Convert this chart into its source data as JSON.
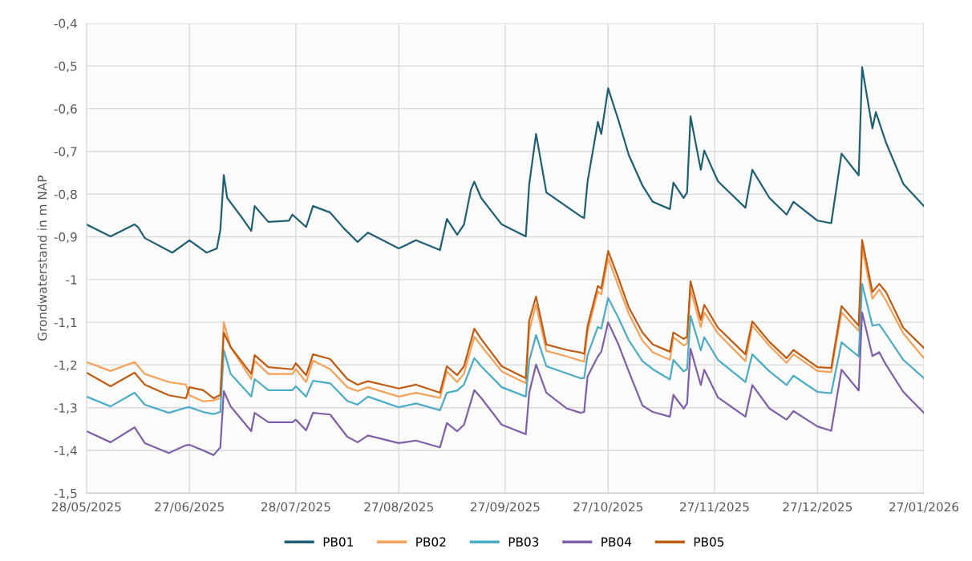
{
  "chart_data": {
    "type": "line",
    "ylabel": "Grondwaterstand in m NAP",
    "x": [
      "2025-05-28",
      "2025-06-04",
      "2025-06-11",
      "2025-06-14",
      "2025-06-21",
      "2025-06-26",
      "2025-06-27",
      "2025-07-01",
      "2025-07-04",
      "2025-07-06",
      "2025-07-07",
      "2025-07-09",
      "2025-07-15",
      "2025-07-16",
      "2025-07-20",
      "2025-07-27",
      "2025-07-28",
      "2025-07-31",
      "2025-08-02",
      "2025-08-07",
      "2025-08-12",
      "2025-08-15",
      "2025-08-18",
      "2025-08-27",
      "2025-09-01",
      "2025-09-08",
      "2025-09-10",
      "2025-09-13",
      "2025-09-15",
      "2025-09-18",
      "2025-09-20",
      "2025-09-26",
      "2025-10-03",
      "2025-10-04",
      "2025-10-06",
      "2025-10-09",
      "2025-10-15",
      "2025-10-19",
      "2025-10-20",
      "2025-10-21",
      "2025-10-24",
      "2025-10-25",
      "2025-10-27",
      "2025-10-30",
      "2025-11-02",
      "2025-11-06",
      "2025-11-09",
      "2025-11-14",
      "2025-11-15",
      "2025-11-18",
      "2025-11-19",
      "2025-11-20",
      "2025-11-23",
      "2025-11-24",
      "2025-11-28",
      "2025-12-06",
      "2025-12-08",
      "2025-12-13",
      "2025-12-18",
      "2025-12-20",
      "2025-12-27",
      "2025-12-31",
      "2026-01-03",
      "2026-01-08",
      "2026-01-09",
      "2026-01-12",
      "2026-01-14",
      "2026-01-16",
      "2026-01-21",
      "2026-01-27"
    ],
    "series": [
      {
        "name": "PB01",
        "color": "#1f5f74",
        "x": [
          "2025-05-28",
          "2025-06-04",
          "2025-06-11",
          "2025-06-12",
          "2025-06-14",
          "2025-06-22",
          "2025-06-27",
          "2025-07-02",
          "2025-07-05",
          "2025-07-06",
          "2025-07-07",
          "2025-07-08",
          "2025-07-12",
          "2025-07-15",
          "2025-07-16",
          "2025-07-20",
          "2025-07-26",
          "2025-07-27",
          "2025-07-31",
          "2025-08-02",
          "2025-08-07",
          "2025-08-11",
          "2025-08-15",
          "2025-08-18",
          "2025-08-27",
          "2025-09-01",
          "2025-09-08",
          "2025-09-10",
          "2025-09-13",
          "2025-09-15",
          "2025-09-17",
          "2025-09-18",
          "2025-09-20",
          "2025-09-26",
          "2025-10-03",
          "2025-10-04",
          "2025-10-06",
          "2025-10-09",
          "2025-10-19",
          "2025-10-20",
          "2025-10-21",
          "2025-10-24",
          "2025-10-25",
          "2025-10-27",
          "2025-10-30",
          "2025-11-02",
          "2025-11-06",
          "2025-11-09",
          "2025-11-14",
          "2025-11-15",
          "2025-11-18",
          "2025-11-19",
          "2025-11-20",
          "2025-11-23",
          "2025-11-24",
          "2025-11-28",
          "2025-12-06",
          "2025-12-08",
          "2025-12-13",
          "2025-12-18",
          "2025-12-20",
          "2025-12-27",
          "2025-12-31",
          "2026-01-03",
          "2026-01-08",
          "2026-01-09",
          "2026-01-12",
          "2026-01-13",
          "2026-01-16",
          "2026-01-21",
          "2026-01-27"
        ],
        "values": [
          -0.871,
          -0.899,
          -0.871,
          -0.877,
          -0.903,
          -0.937,
          -0.908,
          -0.937,
          -0.927,
          -0.884,
          -0.755,
          -0.809,
          -0.852,
          -0.886,
          -0.828,
          -0.865,
          -0.862,
          -0.848,
          -0.877,
          -0.828,
          -0.843,
          -0.88,
          -0.912,
          -0.89,
          -0.927,
          -0.908,
          -0.931,
          -0.858,
          -0.895,
          -0.871,
          -0.79,
          -0.771,
          -0.809,
          -0.871,
          -0.899,
          -0.777,
          -0.659,
          -0.796,
          -0.852,
          -0.856,
          -0.771,
          -0.631,
          -0.659,
          -0.552,
          -0.627,
          -0.708,
          -0.78,
          -0.818,
          -0.835,
          -0.773,
          -0.809,
          -0.796,
          -0.618,
          -0.743,
          -0.698,
          -0.77,
          -0.832,
          -0.743,
          -0.809,
          -0.848,
          -0.818,
          -0.862,
          -0.868,
          -0.705,
          -0.756,
          -0.503,
          -0.646,
          -0.608,
          -0.68,
          -0.776,
          -0.828
        ]
      },
      {
        "name": "PB02",
        "color": "#f4a15a",
        "values": [
          -1.193,
          -1.214,
          -1.193,
          -1.221,
          -1.24,
          -1.246,
          -1.271,
          -1.285,
          -1.283,
          -1.278,
          -1.1,
          -1.158,
          -1.233,
          -1.19,
          -1.221,
          -1.221,
          -1.21,
          -1.24,
          -1.19,
          -1.21,
          -1.252,
          -1.261,
          -1.252,
          -1.274,
          -1.265,
          -1.277,
          -1.215,
          -1.24,
          -1.22,
          -1.134,
          -1.155,
          -1.215,
          -1.243,
          -1.12,
          -1.059,
          -1.167,
          -1.18,
          -1.19,
          -1.192,
          -1.122,
          -1.028,
          -1.035,
          -0.95,
          -1.015,
          -1.08,
          -1.143,
          -1.17,
          -1.188,
          -1.135,
          -1.154,
          -1.15,
          -1.023,
          -1.111,
          -1.077,
          -1.126,
          -1.191,
          -1.108,
          -1.155,
          -1.195,
          -1.175,
          -1.214,
          -1.217,
          -1.077,
          -1.12,
          -0.925,
          -1.045,
          -1.023,
          -1.05,
          -1.126,
          -1.184
        ]
      },
      {
        "name": "PB03",
        "color": "#4bacc6",
        "values": [
          -1.274,
          -1.297,
          -1.265,
          -1.293,
          -1.312,
          -1.3,
          -1.299,
          -1.31,
          -1.315,
          -1.31,
          -1.165,
          -1.221,
          -1.274,
          -1.233,
          -1.259,
          -1.259,
          -1.25,
          -1.274,
          -1.237,
          -1.243,
          -1.284,
          -1.293,
          -1.274,
          -1.299,
          -1.29,
          -1.306,
          -1.265,
          -1.26,
          -1.246,
          -1.184,
          -1.203,
          -1.252,
          -1.274,
          -1.19,
          -1.13,
          -1.203,
          -1.22,
          -1.231,
          -1.231,
          -1.177,
          -1.111,
          -1.115,
          -1.043,
          -1.09,
          -1.142,
          -1.191,
          -1.21,
          -1.234,
          -1.188,
          -1.215,
          -1.21,
          -1.085,
          -1.166,
          -1.135,
          -1.188,
          -1.24,
          -1.175,
          -1.215,
          -1.247,
          -1.225,
          -1.263,
          -1.266,
          -1.147,
          -1.18,
          -1.01,
          -1.108,
          -1.105,
          -1.128,
          -1.188,
          -1.231
        ]
      },
      {
        "name": "PB04",
        "color": "#7f5fa8",
        "values": [
          -1.355,
          -1.381,
          -1.346,
          -1.383,
          -1.406,
          -1.388,
          -1.387,
          -1.4,
          -1.411,
          -1.393,
          -1.261,
          -1.297,
          -1.355,
          -1.312,
          -1.334,
          -1.334,
          -1.328,
          -1.353,
          -1.312,
          -1.316,
          -1.368,
          -1.381,
          -1.365,
          -1.383,
          -1.377,
          -1.393,
          -1.336,
          -1.355,
          -1.34,
          -1.259,
          -1.277,
          -1.34,
          -1.362,
          -1.265,
          -1.199,
          -1.265,
          -1.302,
          -1.312,
          -1.31,
          -1.227,
          -1.18,
          -1.169,
          -1.1,
          -1.152,
          -1.215,
          -1.295,
          -1.31,
          -1.321,
          -1.27,
          -1.302,
          -1.29,
          -1.162,
          -1.247,
          -1.211,
          -1.276,
          -1.321,
          -1.247,
          -1.302,
          -1.328,
          -1.308,
          -1.344,
          -1.354,
          -1.211,
          -1.26,
          -1.077,
          -1.179,
          -1.17,
          -1.2,
          -1.263,
          -1.312
        ]
      },
      {
        "name": "PB05",
        "color": "#c05b12",
        "values": [
          -1.218,
          -1.25,
          -1.218,
          -1.246,
          -1.271,
          -1.278,
          -1.252,
          -1.259,
          -1.278,
          -1.27,
          -1.124,
          -1.158,
          -1.221,
          -1.177,
          -1.205,
          -1.21,
          -1.196,
          -1.224,
          -1.175,
          -1.186,
          -1.233,
          -1.246,
          -1.238,
          -1.255,
          -1.246,
          -1.265,
          -1.203,
          -1.224,
          -1.203,
          -1.115,
          -1.139,
          -1.203,
          -1.231,
          -1.096,
          -1.04,
          -1.152,
          -1.165,
          -1.171,
          -1.174,
          -1.109,
          -1.015,
          -1.021,
          -0.933,
          -0.997,
          -1.065,
          -1.124,
          -1.152,
          -1.169,
          -1.124,
          -1.139,
          -1.134,
          -1.004,
          -1.094,
          -1.059,
          -1.113,
          -1.175,
          -1.098,
          -1.146,
          -1.184,
          -1.165,
          -1.205,
          -1.207,
          -1.062,
          -1.108,
          -0.907,
          -1.029,
          -1.01,
          -1.03,
          -1.113,
          -1.16
        ]
      }
    ],
    "xlim": [
      "2025-05-28",
      "2026-01-27"
    ],
    "xticks": [
      {
        "value": "2025-05-28",
        "label": "28/05/2025"
      },
      {
        "value": "2025-06-27",
        "label": "27/06/2025"
      },
      {
        "value": "2025-07-28",
        "label": "28/07/2025"
      },
      {
        "value": "2025-08-27",
        "label": "27/08/2025"
      },
      {
        "value": "2025-09-27",
        "label": "27/09/2025"
      },
      {
        "value": "2025-10-27",
        "label": "27/10/2025"
      },
      {
        "value": "2025-11-27",
        "label": "27/11/2025"
      },
      {
        "value": "2025-12-27",
        "label": "27/12/2025"
      },
      {
        "value": "2026-01-27",
        "label": "27/01/2026"
      }
    ],
    "ylim": [
      -1.5,
      -0.4
    ],
    "yticks": [
      {
        "value": -1.5,
        "label": "-1,5"
      },
      {
        "value": -1.4,
        "label": "-1,4"
      },
      {
        "value": -1.3,
        "label": "-1,3"
      },
      {
        "value": -1.2,
        "label": "-1,2"
      },
      {
        "value": -1.1,
        "label": "-1,1"
      },
      {
        "value": -1.0,
        "label": "-1"
      },
      {
        "value": -0.9,
        "label": "-0,9"
      },
      {
        "value": -0.8,
        "label": "-0,8"
      },
      {
        "value": -0.7,
        "label": "-0,7"
      },
      {
        "value": -0.6,
        "label": "-0,6"
      },
      {
        "value": -0.5,
        "label": "-0,5"
      },
      {
        "value": -0.4,
        "label": "-0,4"
      }
    ],
    "grid": true,
    "legend": "bottom",
    "marker": "none",
    "line_style": "solid"
  }
}
